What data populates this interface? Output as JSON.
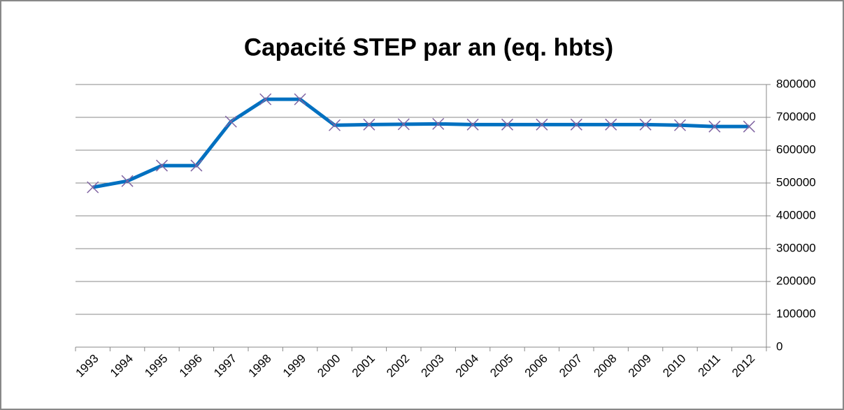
{
  "chart_data": {
    "type": "line",
    "title": "Capacité STEP par an (eq. hbts)",
    "categories": [
      "1993",
      "1994",
      "1995",
      "1996",
      "1997",
      "1998",
      "1999",
      "2000",
      "2001",
      "2002",
      "2003",
      "2004",
      "2005",
      "2006",
      "2007",
      "2008",
      "2009",
      "2010",
      "2011",
      "2012"
    ],
    "series": [
      {
        "name": "Capacité STEP",
        "color": "#0070c0",
        "marker_color": "#8064a2",
        "values": [
          487000,
          506000,
          553000,
          553000,
          687000,
          755000,
          755000,
          676000,
          678000,
          679000,
          680000,
          678000,
          678000,
          678000,
          678000,
          678000,
          678000,
          676000,
          672000,
          672000
        ]
      }
    ],
    "ylim": [
      0,
      800000
    ],
    "yticks": [
      0,
      100000,
      200000,
      300000,
      400000,
      500000,
      600000,
      700000,
      800000
    ],
    "grid": true,
    "y_axis_side": "right"
  }
}
